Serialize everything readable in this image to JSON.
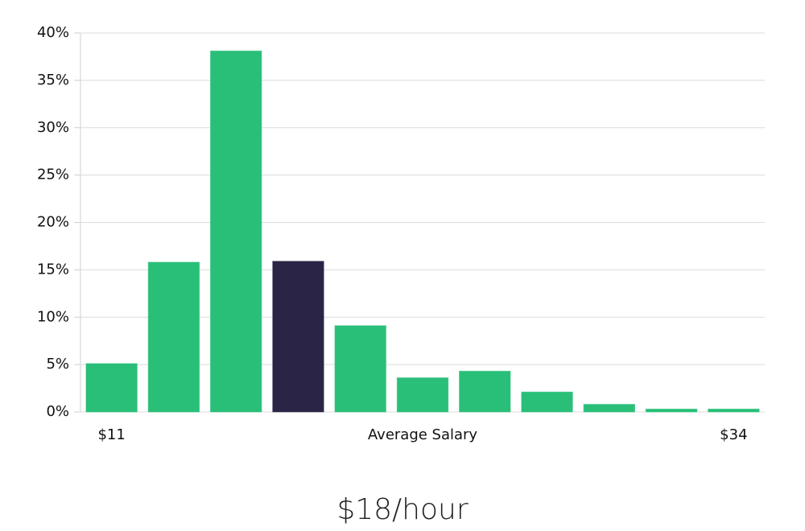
{
  "chart_data": {
    "type": "bar",
    "subtitle": "$18/hour",
    "x_label": "Average Salary",
    "categories": [
      "$11",
      null,
      null,
      null,
      null,
      null,
      null,
      null,
      null,
      null,
      "$34"
    ],
    "values": [
      5.1,
      15.8,
      38.1,
      15.9,
      9.1,
      3.6,
      4.3,
      2.1,
      0.8,
      0.3,
      0.3
    ],
    "colors": [
      "#2abf78",
      "#2abf78",
      "#2abf78",
      "#2a2546",
      "#2abf78",
      "#2abf78",
      "#2abf78",
      "#2abf78",
      "#2abf78",
      "#2abf78",
      "#2abf78"
    ],
    "ylim": [
      0,
      40
    ],
    "yticks": [
      {
        "value": 0,
        "label": "0%"
      },
      {
        "value": 5,
        "label": "5%"
      },
      {
        "value": 10,
        "label": "10%"
      },
      {
        "value": 15,
        "label": "15%"
      },
      {
        "value": 20,
        "label": "20%"
      },
      {
        "value": 25,
        "label": "25%"
      },
      {
        "value": 30,
        "label": "30%"
      },
      {
        "value": 35,
        "label": "35%"
      },
      {
        "value": 40,
        "label": "40%"
      }
    ],
    "grid": true
  }
}
